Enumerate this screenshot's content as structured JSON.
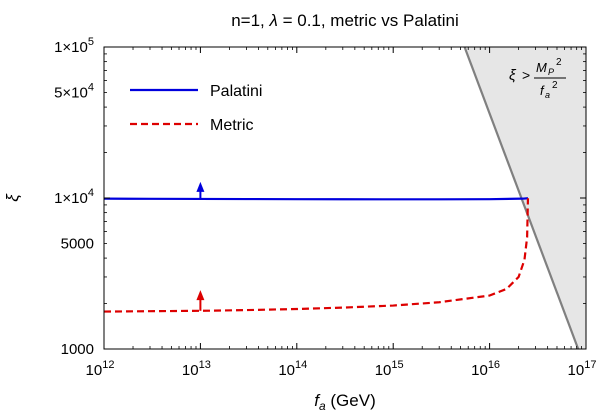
{
  "chart_data": {
    "type": "line",
    "title_parts": {
      "prefix": "n=1, ",
      "lambda": "λ",
      "suffix": " = 0.1, metric vs Palatini"
    },
    "xlabel_parts": {
      "var": "f",
      "sub": "a",
      "unit": " (GeV)"
    },
    "ylabel": "ξ",
    "x_scale": "log",
    "y_scale": "log",
    "xlim": [
      1000000000000.0,
      1e+17
    ],
    "ylim": [
      1000,
      100000
    ],
    "x_tick_labels": [
      {
        "value": 1000000000000.0,
        "base": "10",
        "exp": "12"
      },
      {
        "value": 10000000000000.0,
        "base": "10",
        "exp": "13"
      },
      {
        "value": 100000000000000.0,
        "base": "10",
        "exp": "14"
      },
      {
        "value": 1000000000000000.0,
        "base": "10",
        "exp": "15"
      },
      {
        "value": 1e+16,
        "base": "10",
        "exp": "16"
      },
      {
        "value": 1e+17,
        "base": "10",
        "exp": "17"
      }
    ],
    "y_tick_labels": [
      {
        "value": 100000,
        "mant": "1×10",
        "exp": "5"
      },
      {
        "value": 50000,
        "mant": "5×10",
        "exp": "4"
      },
      {
        "value": 10000,
        "mant": "1×10",
        "exp": "4"
      },
      {
        "value": 5000,
        "mant": "5000",
        "exp": ""
      },
      {
        "value": 1000,
        "mant": "1000",
        "exp": ""
      }
    ],
    "series": [
      {
        "name": "Palatini",
        "color": "#0000dd",
        "style": "solid",
        "points": [
          [
            1000000000000.0,
            9900
          ],
          [
            3000000000000.0,
            9880
          ],
          [
            10000000000000.0,
            9860
          ],
          [
            30000000000000.0,
            9840
          ],
          [
            100000000000000.0,
            9820
          ],
          [
            300000000000000.0,
            9810
          ],
          [
            1000000000000000.0,
            9800
          ],
          [
            3000000000000000.0,
            9800
          ],
          [
            1e+16,
            9820
          ],
          [
            2.2e+16,
            9900
          ],
          [
            2.5e+16,
            9960
          ]
        ]
      },
      {
        "name": "Metric",
        "color": "#dd0000",
        "style": "dashed",
        "points": [
          [
            1000000000000.0,
            1770
          ],
          [
            3000000000000.0,
            1780
          ],
          [
            10000000000000.0,
            1790
          ],
          [
            30000000000000.0,
            1810
          ],
          [
            100000000000000.0,
            1840
          ],
          [
            300000000000000.0,
            1880
          ],
          [
            1000000000000000.0,
            1940
          ],
          [
            3000000000000000.0,
            2040
          ],
          [
            1e+16,
            2260
          ],
          [
            1.5e+16,
            2500
          ],
          [
            2e+16,
            3000
          ],
          [
            2.3e+16,
            3900
          ],
          [
            2.45e+16,
            5500
          ],
          [
            2.5e+16,
            9960
          ]
        ]
      }
    ],
    "arrows": [
      {
        "x": 10000000000000.0,
        "from": 9860,
        "to": 12400,
        "color": "#0000dd"
      },
      {
        "x": 10000000000000.0,
        "from": 1790,
        "to": 2380,
        "color": "#dd0000"
      }
    ],
    "excluded_region": {
      "fill": "#e6e6e6",
      "edge_color": "#808080",
      "boundary": [
        [
          5500000000000000.0,
          100000
        ],
        [
          8.3e+16,
          1000
        ]
      ],
      "label_parts": {
        "xi": "ξ",
        "gt": ">",
        "num": "M",
        "num_sub": "P",
        "num_exp": "2",
        "den": "f",
        "den_sub": "a",
        "den_exp": "2"
      }
    },
    "legend": {
      "position": "top-left",
      "entries": [
        "Palatini",
        "Metric"
      ]
    },
    "grid": false
  }
}
